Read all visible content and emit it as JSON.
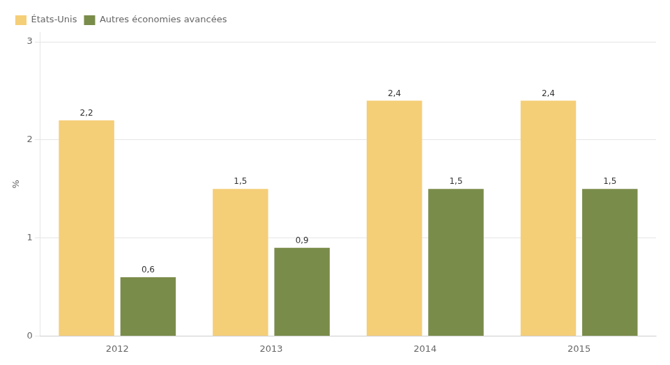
{
  "chart_data": {
    "type": "bar",
    "ylabel": "%",
    "categories": [
      "2012",
      "2013",
      "2014",
      "2015"
    ],
    "series": [
      {
        "name": "États-Unis",
        "color": "#F5CE78",
        "values": [
          2.2,
          1.5,
          2.4,
          2.4
        ],
        "value_labels": [
          "2,2",
          "1,5",
          "2,4",
          "2,4"
        ]
      },
      {
        "name": "Autres économies avancées",
        "color": "#7A8C4A",
        "values": [
          0.6,
          0.9,
          1.5,
          1.5
        ],
        "value_labels": [
          "0,6",
          "0,9",
          "1,5",
          "1,5"
        ]
      }
    ],
    "ylim": [
      0,
      3.1
    ],
    "yticks": [
      0,
      1,
      2,
      3
    ],
    "grid": true,
    "legend": "upper left",
    "data_labels": true
  }
}
